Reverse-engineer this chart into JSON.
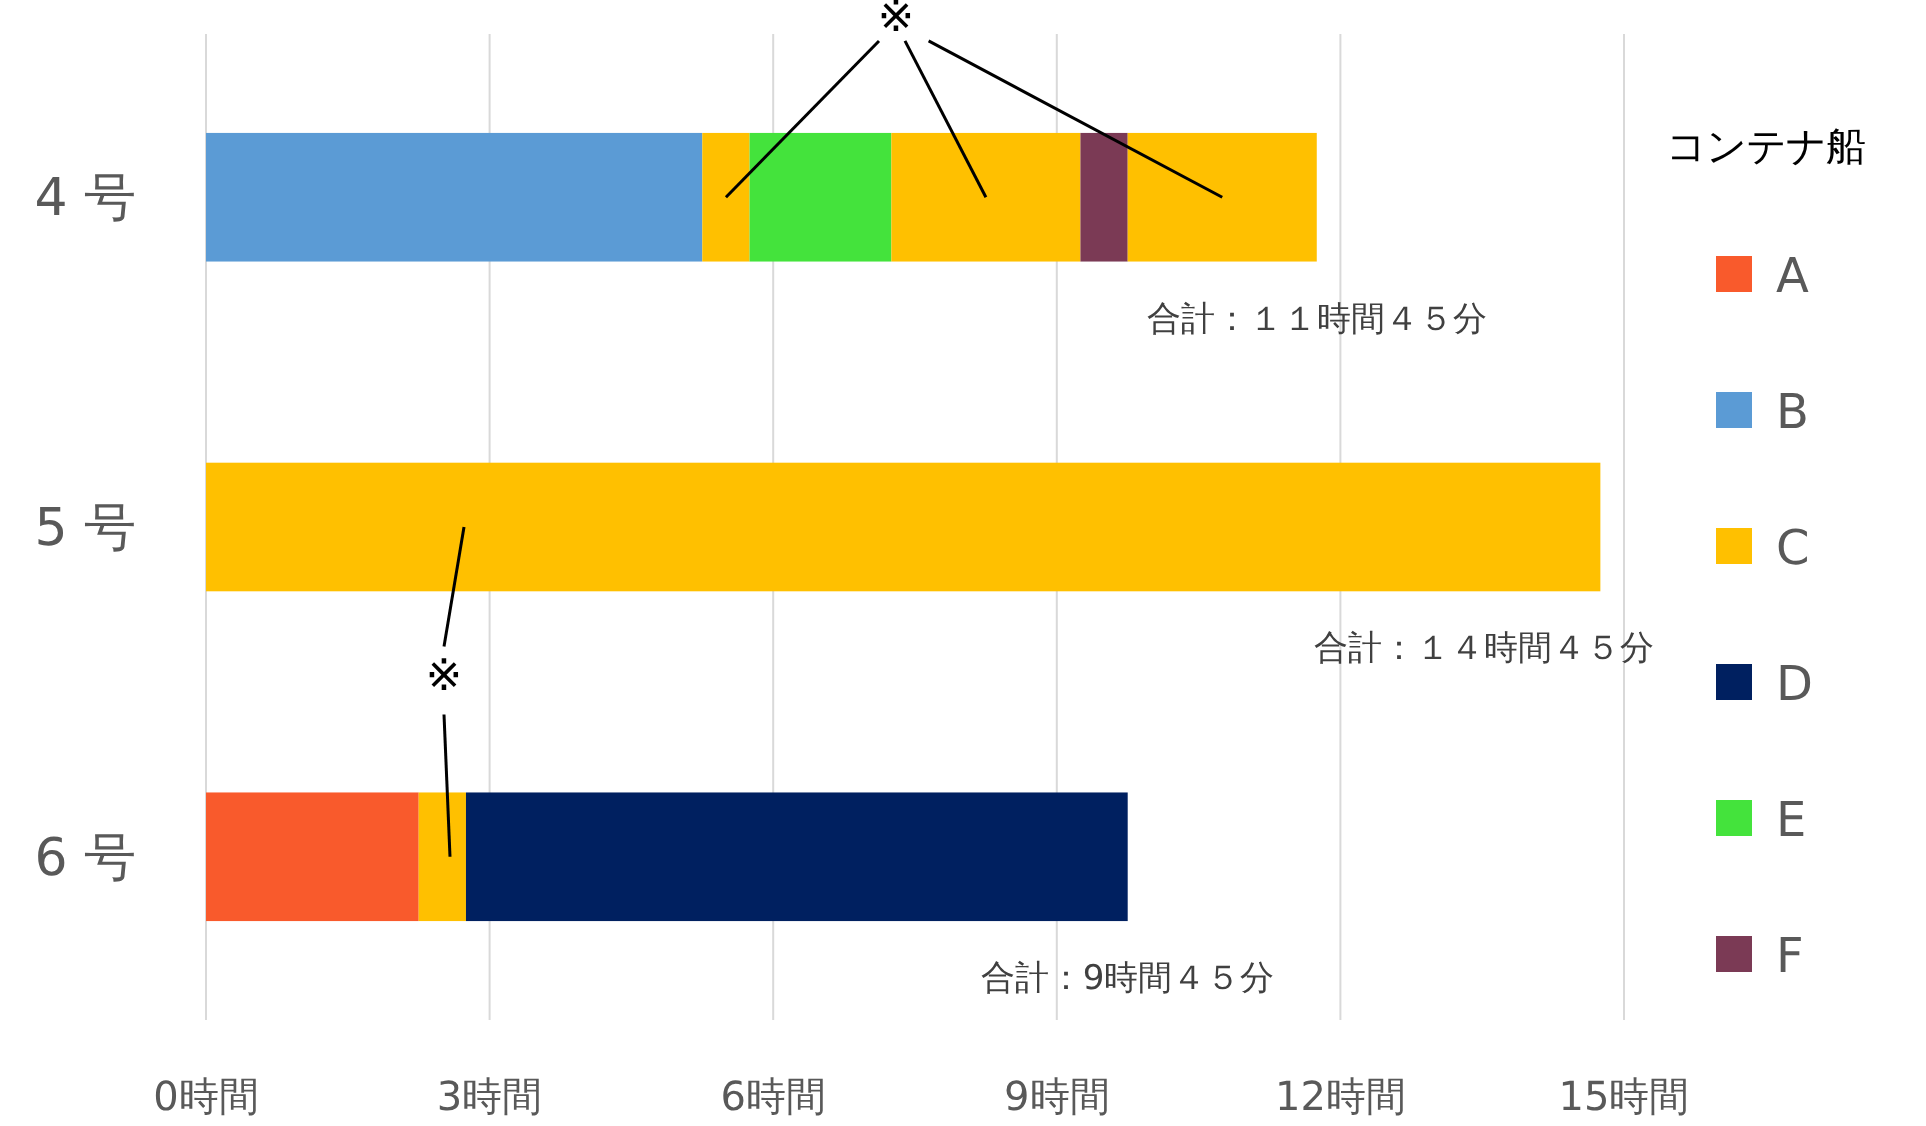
{
  "chart_data": {
    "type": "bar",
    "orientation": "horizontal",
    "stacked": true,
    "categories": [
      "4 号",
      "5 号",
      "6 号"
    ],
    "series": [
      {
        "name": "A",
        "color": "#f95a2c",
        "values": [
          null,
          null,
          2.25
        ]
      },
      {
        "name": "B",
        "color": "#5b9bd5",
        "values": [
          5.25,
          null,
          null
        ]
      },
      {
        "name": "C",
        "color": "#ffc000",
        "values": [
          0.5,
          14.75,
          0.5
        ]
      },
      {
        "name": "D",
        "color": "#002060",
        "values": [
          null,
          null,
          7
        ]
      },
      {
        "name": "E",
        "color": "#44e33c",
        "values": [
          1.5,
          null,
          null
        ]
      },
      {
        "color": "#ffc000",
        "values": [
          2,
          null,
          null
        ]
      },
      {
        "name": "F",
        "color": "#7b3a55",
        "values": [
          0.5,
          null,
          null
        ]
      },
      {
        "color": "#ffc000",
        "values": [
          2,
          null,
          null
        ]
      }
    ],
    "xlim": [
      0,
      15
    ],
    "xticks": [
      {
        "value": 0,
        "label": "0時間"
      },
      {
        "value": 3,
        "label": "3時間"
      },
      {
        "value": 6,
        "label": "6時間"
      },
      {
        "value": 9,
        "label": "9時間"
      },
      {
        "value": 12,
        "label": "12時間"
      },
      {
        "value": 15,
        "label": "15時間"
      }
    ],
    "grid": "x",
    "legend": "right",
    "legend_title": "コンテナ船",
    "totals": [
      "合計：１１時間４５分",
      "合計：１４時間４５分",
      "合計：9時間４５分"
    ],
    "annotations": [
      "※",
      "※"
    ]
  }
}
